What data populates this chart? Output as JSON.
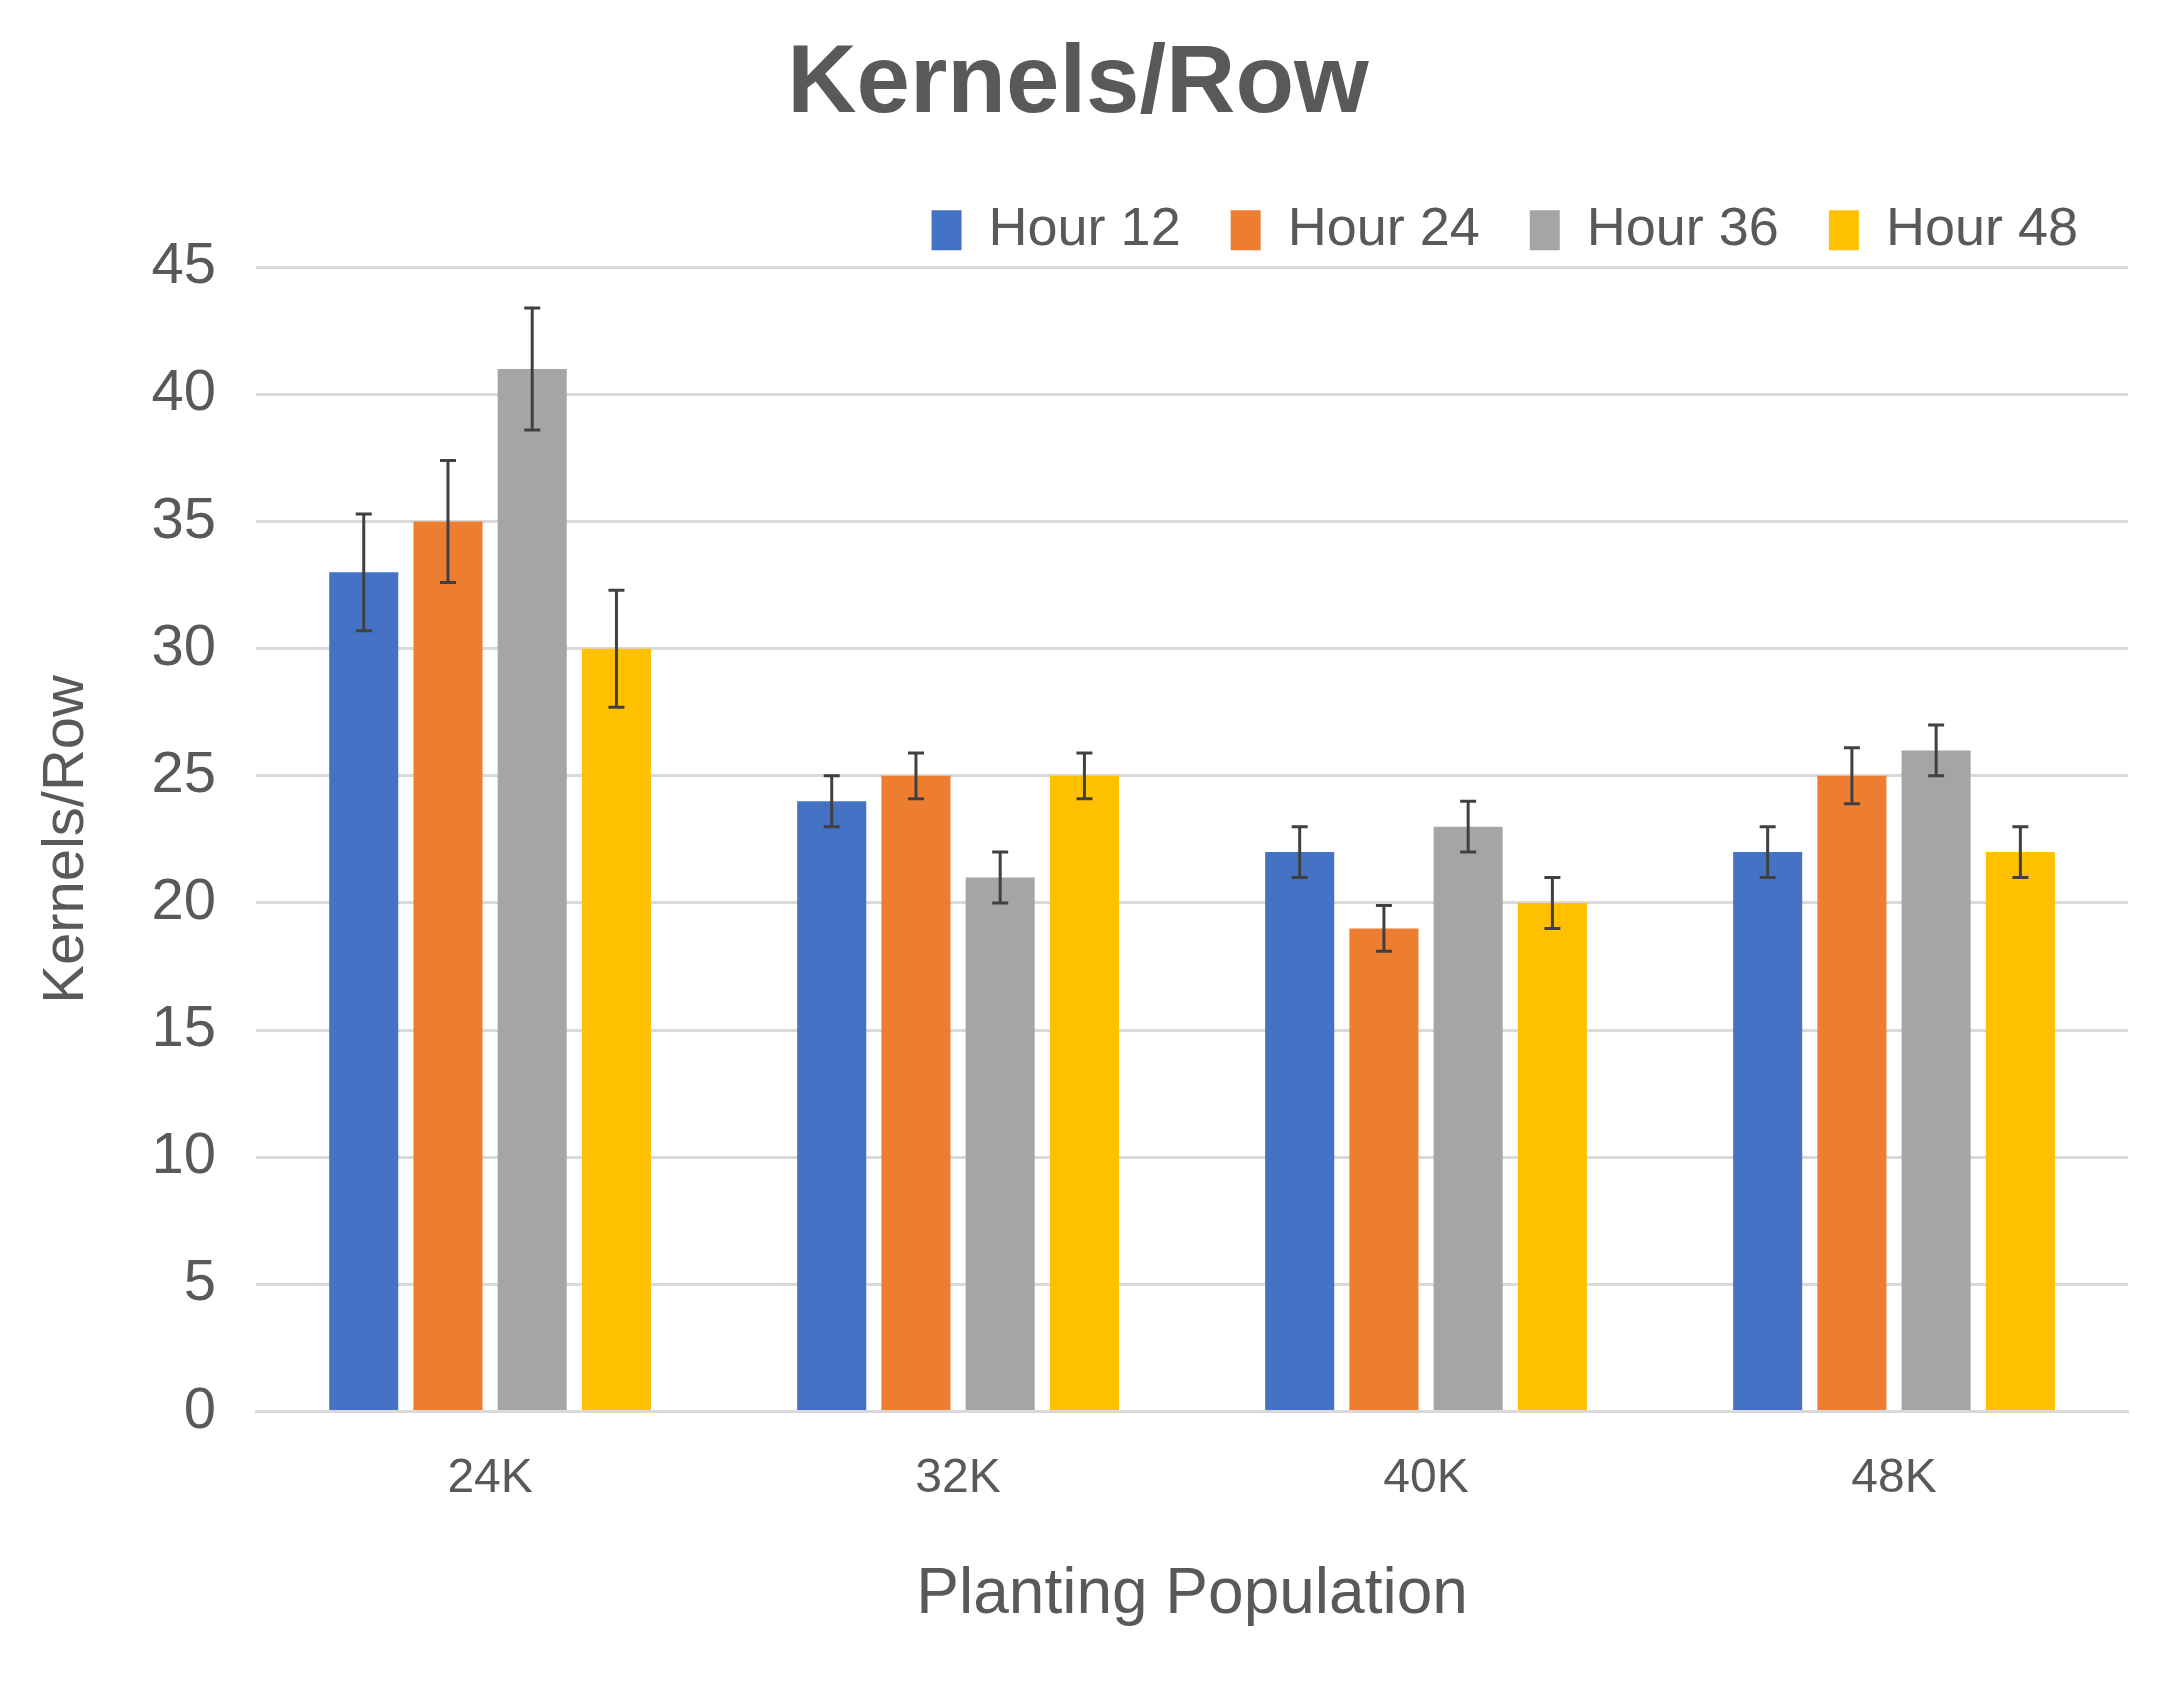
{
  "chart_data": {
    "type": "bar",
    "title": "Kernels/Row",
    "xlabel": "Planting Population",
    "ylabel": "Kernels/Row",
    "categories": [
      "24K",
      "32K",
      "40K",
      "48K"
    ],
    "series": [
      {
        "name": "Hour 12",
        "color": "#4472c4",
        "values": [
          33,
          24,
          22,
          22
        ],
        "errors": [
          2.3,
          1,
          1,
          1
        ]
      },
      {
        "name": "Hour 24",
        "color": "#ed7d31",
        "values": [
          35,
          25,
          19,
          25
        ],
        "errors": [
          2.4,
          0.9,
          0.9,
          1.1
        ]
      },
      {
        "name": "Hour 36",
        "color": "#a5a5a5",
        "values": [
          41,
          21,
          23,
          26
        ],
        "errors": [
          2.4,
          1,
          1,
          1
        ]
      },
      {
        "name": "Hour 48",
        "color": "#ffc000",
        "values": [
          30,
          25,
          20,
          22
        ],
        "errors": [
          2.3,
          0.9,
          1,
          1
        ]
      }
    ],
    "ylim": [
      0,
      45
    ],
    "yticks": [
      0,
      5,
      10,
      15,
      20,
      25,
      30,
      35,
      40,
      45
    ],
    "grid": "y",
    "legend": "top right"
  }
}
